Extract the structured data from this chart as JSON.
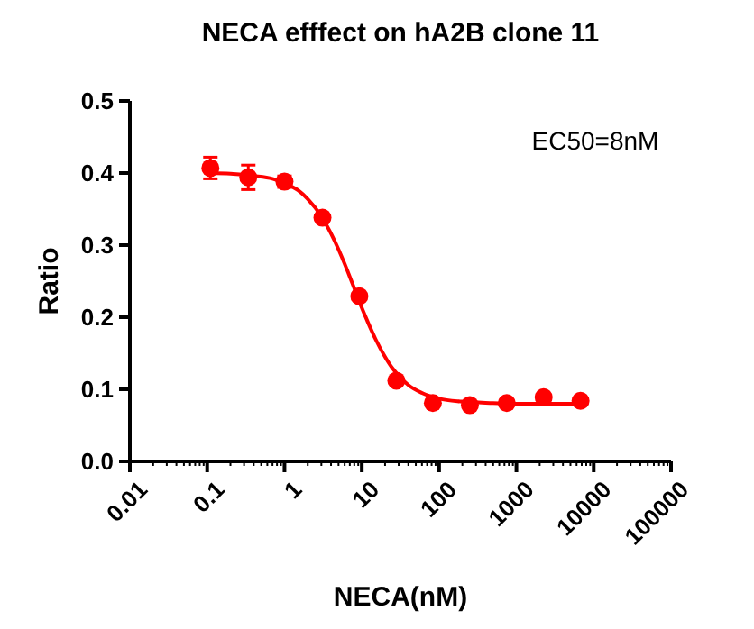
{
  "chart_data": {
    "type": "scatter",
    "title": "NECA efffect on hA2B clone 11",
    "xlabel": "NECA(nM)",
    "ylabel": "Ratio",
    "annotations": [
      "EC50=8nM"
    ],
    "log": "x",
    "xlim": [
      0.01,
      100000
    ],
    "xticks": [
      0.01,
      {
        "value": 0.02,
        "label": null
      },
      {
        "value": 0.03,
        "label": null
      },
      {
        "value": 0.04,
        "label": null
      },
      {
        "value": 0.05,
        "label": null
      },
      {
        "value": 0.06,
        "label": null
      },
      {
        "value": 0.07,
        "label": null
      },
      {
        "value": 0.08,
        "label": null
      },
      {
        "value": 0.09,
        "label": null
      },
      0.1,
      {
        "value": 0.2,
        "label": null
      },
      {
        "value": 0.3,
        "label": null
      },
      {
        "value": 0.4,
        "label": null
      },
      {
        "value": 0.5,
        "label": null
      },
      {
        "value": 0.6,
        "label": null
      },
      {
        "value": 0.7,
        "label": null
      },
      {
        "value": 0.8,
        "label": null
      },
      {
        "value": 0.9,
        "label": null
      },
      1,
      {
        "value": 2,
        "label": null
      },
      {
        "value": 3,
        "label": null
      },
      {
        "value": 4,
        "label": null
      },
      {
        "value": 5,
        "label": null
      },
      {
        "value": 6,
        "label": null
      },
      {
        "value": 7,
        "label": null
      },
      {
        "value": 8,
        "label": null
      },
      {
        "value": 9,
        "label": null
      },
      10,
      {
        "value": 20,
        "label": null
      },
      {
        "value": 30,
        "label": null
      },
      {
        "value": 40,
        "label": null
      },
      {
        "value": 50,
        "label": null
      },
      {
        "value": 60,
        "label": null
      },
      {
        "value": 70,
        "label": null
      },
      {
        "value": 80,
        "label": null
      },
      {
        "value": 90,
        "label": null
      },
      100,
      {
        "value": 200,
        "label": null
      },
      {
        "value": 300,
        "label": null
      },
      {
        "value": 400,
        "label": null
      },
      {
        "value": 500,
        "label": null
      },
      {
        "value": 600,
        "label": null
      },
      {
        "value": 700,
        "label": null
      },
      {
        "value": 800,
        "label": null
      },
      {
        "value": 900,
        "label": null
      },
      1000,
      {
        "value": 2000,
        "label": null
      },
      {
        "value": 3000,
        "label": null
      },
      {
        "value": 4000,
        "label": null
      },
      {
        "value": 5000,
        "label": null
      },
      {
        "value": 6000,
        "label": null
      },
      {
        "value": 7000,
        "label": null
      },
      {
        "value": 8000,
        "label": null
      },
      {
        "value": 9000,
        "label": null
      },
      10000,
      {
        "value": 20000,
        "label": null
      },
      {
        "value": 30000,
        "label": null
      },
      {
        "value": 40000,
        "label": null
      },
      {
        "value": 50000,
        "label": null
      },
      {
        "value": 60000,
        "label": null
      },
      {
        "value": 70000,
        "label": null
      },
      {
        "value": 80000,
        "label": null
      },
      {
        "value": 90000,
        "label": null
      },
      100000
    ],
    "ylim": [
      0,
      0.5
    ],
    "yticks": [
      {
        "value": 0,
        "label": "0.0"
      },
      0.1,
      0.2,
      0.3,
      0.4,
      0.5
    ],
    "series": [
      {
        "color": "#ff0000",
        "marker": "circle",
        "x": [
          0.11,
          0.34,
          1.0,
          3.1,
          9.3,
          28,
          83,
          250,
          750,
          2250,
          6750
        ],
        "values": [
          0.407,
          0.394,
          0.388,
          0.338,
          0.229,
          0.112,
          0.081,
          0.078,
          0.081,
          0.089,
          0.084
        ],
        "errors": [
          0.015,
          0.017,
          0.008,
          null,
          null,
          null,
          null,
          null,
          null,
          null,
          null
        ]
      },
      {
        "type": "line",
        "color": "#ff0000",
        "marker": "none",
        "line_style": "solid",
        "x": [
          0.11,
          0.2,
          0.4,
          0.7,
          1,
          1.5,
          2,
          3,
          4,
          5,
          6,
          7,
          8,
          10,
          12,
          15,
          20,
          25,
          30,
          40,
          60,
          100,
          200,
          500,
          1000,
          3000,
          6750
        ],
        "values": [
          0.4,
          0.399,
          0.396,
          0.392,
          0.386,
          0.376,
          0.364,
          0.34,
          0.316,
          0.294,
          0.274,
          0.256,
          0.24,
          0.213,
          0.193,
          0.17,
          0.145,
          0.129,
          0.119,
          0.106,
          0.095,
          0.087,
          0.083,
          0.081,
          0.08,
          0.08,
          0.08
        ]
      }
    ]
  }
}
